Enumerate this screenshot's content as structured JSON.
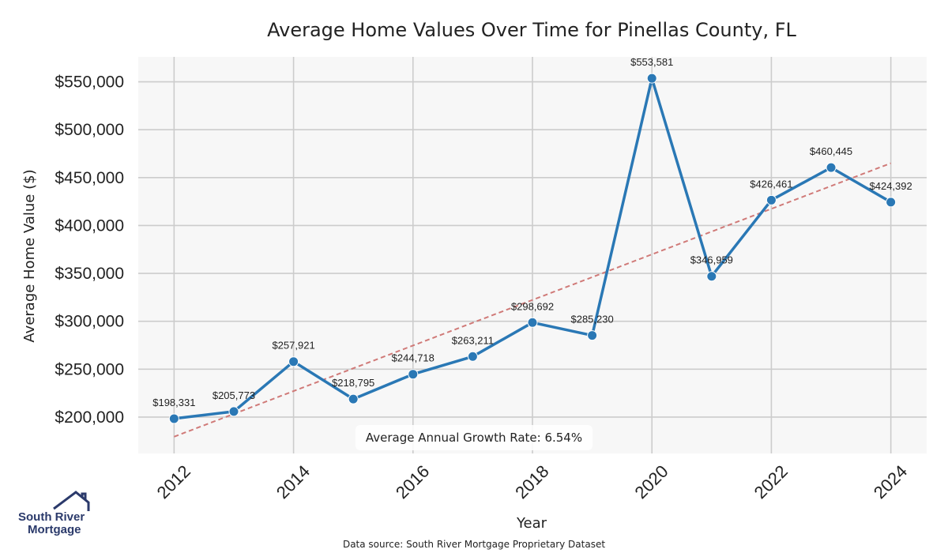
{
  "chart_data": {
    "type": "line",
    "title": "Average Home Values Over Time for Pinellas County, FL",
    "xlabel": "Year",
    "ylabel": "Average Home Value ($)",
    "x": [
      2012,
      2013,
      2014,
      2015,
      2016,
      2017,
      2018,
      2019,
      2020,
      2021,
      2022,
      2023,
      2024
    ],
    "series": [
      {
        "name": "Average Home Value",
        "values": [
          198331,
          205773,
          257921,
          218795,
          244718,
          263211,
          298692,
          285230,
          553581,
          346959,
          426461,
          460445,
          424392
        ],
        "labels": [
          "$198,331",
          "$205,773",
          "$257,921",
          "$218,795",
          "$244,718",
          "$263,211",
          "$298,692",
          "$285,230",
          "$553,581",
          "$346,959",
          "$426,461",
          "$460,445",
          "$424,392"
        ],
        "color": "#2a78b5"
      }
    ],
    "trendline": {
      "x": [
        2012,
        2024
      ],
      "values": [
        179500,
        465000
      ],
      "color": "#d07a78",
      "style": "dashed"
    },
    "xticks": [
      2012,
      2014,
      2016,
      2018,
      2020,
      2022,
      2024
    ],
    "xtick_labels": [
      "2012",
      "2014",
      "2016",
      "2018",
      "2020",
      "2022",
      "2024"
    ],
    "yticks": [
      200000,
      250000,
      300000,
      350000,
      400000,
      450000,
      500000,
      550000
    ],
    "ytick_labels": [
      "$200,000",
      "$250,000",
      "$300,000",
      "$350,000",
      "$400,000",
      "$450,000",
      "$500,000",
      "$550,000"
    ],
    "xlim": [
      2011.4,
      2024.6
    ],
    "ylim": [
      162000,
      576000
    ],
    "grid": true,
    "annotation": "Average Annual Growth Rate: 6.54%",
    "background": "#f7f7f7",
    "grid_color": "#cccccc"
  },
  "footer": {
    "source": "Data source: South River Mortgage Proprietary Dataset",
    "logo_line1": "South River",
    "logo_line2": "Mortgage",
    "logo_color": "#2b3a6b"
  }
}
